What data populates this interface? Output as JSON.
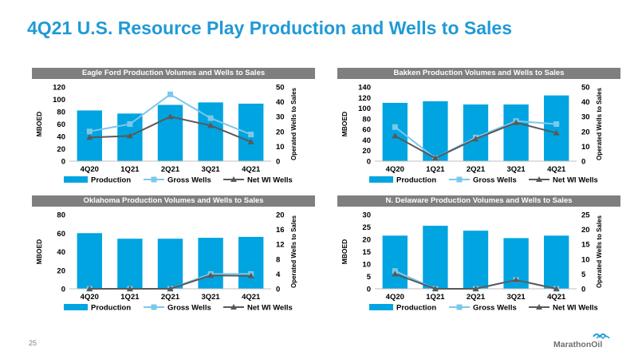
{
  "title": "4Q21 U.S. Resource Play Production and Wells to Sales",
  "page_number": "25",
  "logo_text": "MarathonOil",
  "colors": {
    "title": "#1f9ad6",
    "production": "#00a4e0",
    "gross_wells": "#7cc8ea",
    "net_wi_wells": "#595959",
    "panel_header": "#7f7f7f"
  },
  "chart_data": [
    {
      "type": "bar",
      "title": "Eagle Ford Production Volumes and Wells to Sales",
      "categories": [
        "4Q20",
        "1Q21",
        "2Q21",
        "3Q21",
        "4Q21"
      ],
      "ylabel": "MBOED",
      "y2label": "Operated Wells to Sales",
      "ylim": [
        0,
        120
      ],
      "y2lim": [
        0,
        50
      ],
      "yticks": [
        "0",
        "20",
        "40",
        "60",
        "80",
        "100",
        "120"
      ],
      "y2ticks": [
        "0",
        "10",
        "20",
        "30",
        "40",
        "50"
      ],
      "legend": [
        "Production",
        "Gross Wells",
        "Net WI Wells"
      ],
      "series": [
        {
          "name": "Production",
          "kind": "bar",
          "axis": "left",
          "values": [
            82,
            77,
            91,
            95,
            93
          ]
        },
        {
          "name": "Gross Wells",
          "kind": "line",
          "axis": "right",
          "values": [
            20,
            25,
            45,
            29,
            18
          ]
        },
        {
          "name": "Net WI Wells",
          "kind": "line",
          "axis": "right",
          "values": [
            16,
            17,
            30,
            24,
            13
          ]
        }
      ]
    },
    {
      "type": "bar",
      "title": "Bakken Production Volumes and Wells to Sales",
      "categories": [
        "4Q20",
        "1Q21",
        "2Q21",
        "3Q21",
        "4Q21"
      ],
      "ylabel": "MBOED",
      "y2label": "Operated Wells to Sales",
      "ylim": [
        0,
        140
      ],
      "y2lim": [
        0,
        50
      ],
      "yticks": [
        "0",
        "20",
        "40",
        "60",
        "80",
        "100",
        "120",
        "140"
      ],
      "y2ticks": [
        "0",
        "10",
        "20",
        "30",
        "40",
        "50"
      ],
      "legend": [
        "Production",
        "Gross Wells",
        "Net WI Wells"
      ],
      "series": [
        {
          "name": "Production",
          "kind": "bar",
          "axis": "left",
          "values": [
            110,
            113,
            107,
            107,
            124
          ]
        },
        {
          "name": "Gross Wells",
          "kind": "line",
          "axis": "right",
          "values": [
            23,
            2,
            16,
            27,
            25
          ]
        },
        {
          "name": "Net WI Wells",
          "kind": "line",
          "axis": "right",
          "values": [
            17,
            2,
            15,
            26,
            19
          ]
        }
      ]
    },
    {
      "type": "bar",
      "title": "Oklahoma Production Volumes and Wells to Sales",
      "categories": [
        "4Q20",
        "1Q21",
        "2Q21",
        "3Q21",
        "4Q21"
      ],
      "ylabel": "MBOED",
      "y2label": "Operated Wells to Sales",
      "ylim": [
        0,
        80
      ],
      "y2lim": [
        0,
        20
      ],
      "yticks": [
        "0",
        "20",
        "40",
        "60",
        "80"
      ],
      "y2ticks": [
        "0",
        "4",
        "8",
        "12",
        "16",
        "20"
      ],
      "legend": [
        "Production",
        "Gross Wells",
        "Net WI Wells"
      ],
      "series": [
        {
          "name": "Production",
          "kind": "bar",
          "axis": "left",
          "values": [
            60,
            54,
            54,
            55,
            56
          ]
        },
        {
          "name": "Gross Wells",
          "kind": "line",
          "axis": "right",
          "values": [
            0,
            0,
            0,
            4,
            4
          ]
        },
        {
          "name": "Net WI Wells",
          "kind": "line",
          "axis": "right",
          "values": [
            0,
            0,
            0,
            3.6,
            3.5
          ]
        }
      ]
    },
    {
      "type": "bar",
      "title": "N. Delaware Production Volumes and Wells to Sales",
      "categories": [
        "4Q20",
        "1Q21",
        "2Q21",
        "3Q21",
        "4Q21"
      ],
      "ylabel": "MBOED",
      "y2label": "Operated Wells to Sales",
      "ylim": [
        0,
        30
      ],
      "y2lim": [
        0,
        25
      ],
      "yticks": [
        "0",
        "5",
        "10",
        "15",
        "20",
        "25",
        "30"
      ],
      "y2ticks": [
        "0",
        "5",
        "10",
        "15",
        "20",
        "25"
      ],
      "legend": [
        "Production",
        "Gross Wells",
        "Net WI Wells"
      ],
      "series": [
        {
          "name": "Production",
          "kind": "bar",
          "axis": "left",
          "values": [
            21.5,
            25.5,
            23.5,
            20.5,
            21.5
          ]
        },
        {
          "name": "Gross Wells",
          "kind": "line",
          "axis": "right",
          "values": [
            6,
            0,
            0,
            3,
            0
          ]
        },
        {
          "name": "Net WI Wells",
          "kind": "line",
          "axis": "right",
          "values": [
            5,
            0,
            0,
            3,
            0
          ]
        }
      ]
    }
  ]
}
